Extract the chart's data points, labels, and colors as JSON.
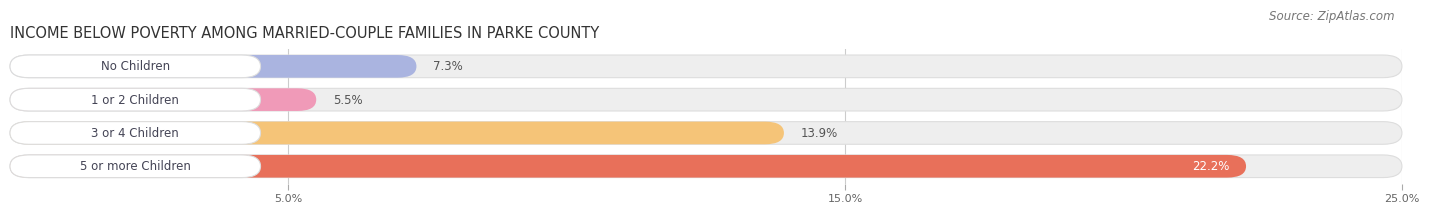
{
  "title": "INCOME BELOW POVERTY AMONG MARRIED-COUPLE FAMILIES IN PARKE COUNTY",
  "source": "Source: ZipAtlas.com",
  "categories": [
    "No Children",
    "1 or 2 Children",
    "3 or 4 Children",
    "5 or more Children"
  ],
  "values": [
    7.3,
    5.5,
    13.9,
    22.2
  ],
  "bar_colors": [
    "#aab4e0",
    "#f09ab8",
    "#f5c478",
    "#e8705a"
  ],
  "label_bg_colors": [
    "#ffffff",
    "#ffffff",
    "#ffffff",
    "#ffffff"
  ],
  "label_left_dot_colors": [
    "#9090d0",
    "#e878a0",
    "#e8a040",
    "#d84838"
  ],
  "xlim_data": [
    0,
    25.0
  ],
  "xlim_display": [
    0,
    25.0
  ],
  "xticks": [
    5.0,
    15.0,
    25.0
  ],
  "xtick_labels": [
    "5.0%",
    "15.0%",
    "25.0%"
  ],
  "background_color": "#ffffff",
  "bar_bg_color": "#eeeeee",
  "bar_bg_edge_color": "#dddddd",
  "title_fontsize": 10.5,
  "source_fontsize": 8.5,
  "label_fontsize": 8.5,
  "value_fontsize": 8.5,
  "value_color_inside": "#ffffff",
  "value_color_outside": "#555555"
}
